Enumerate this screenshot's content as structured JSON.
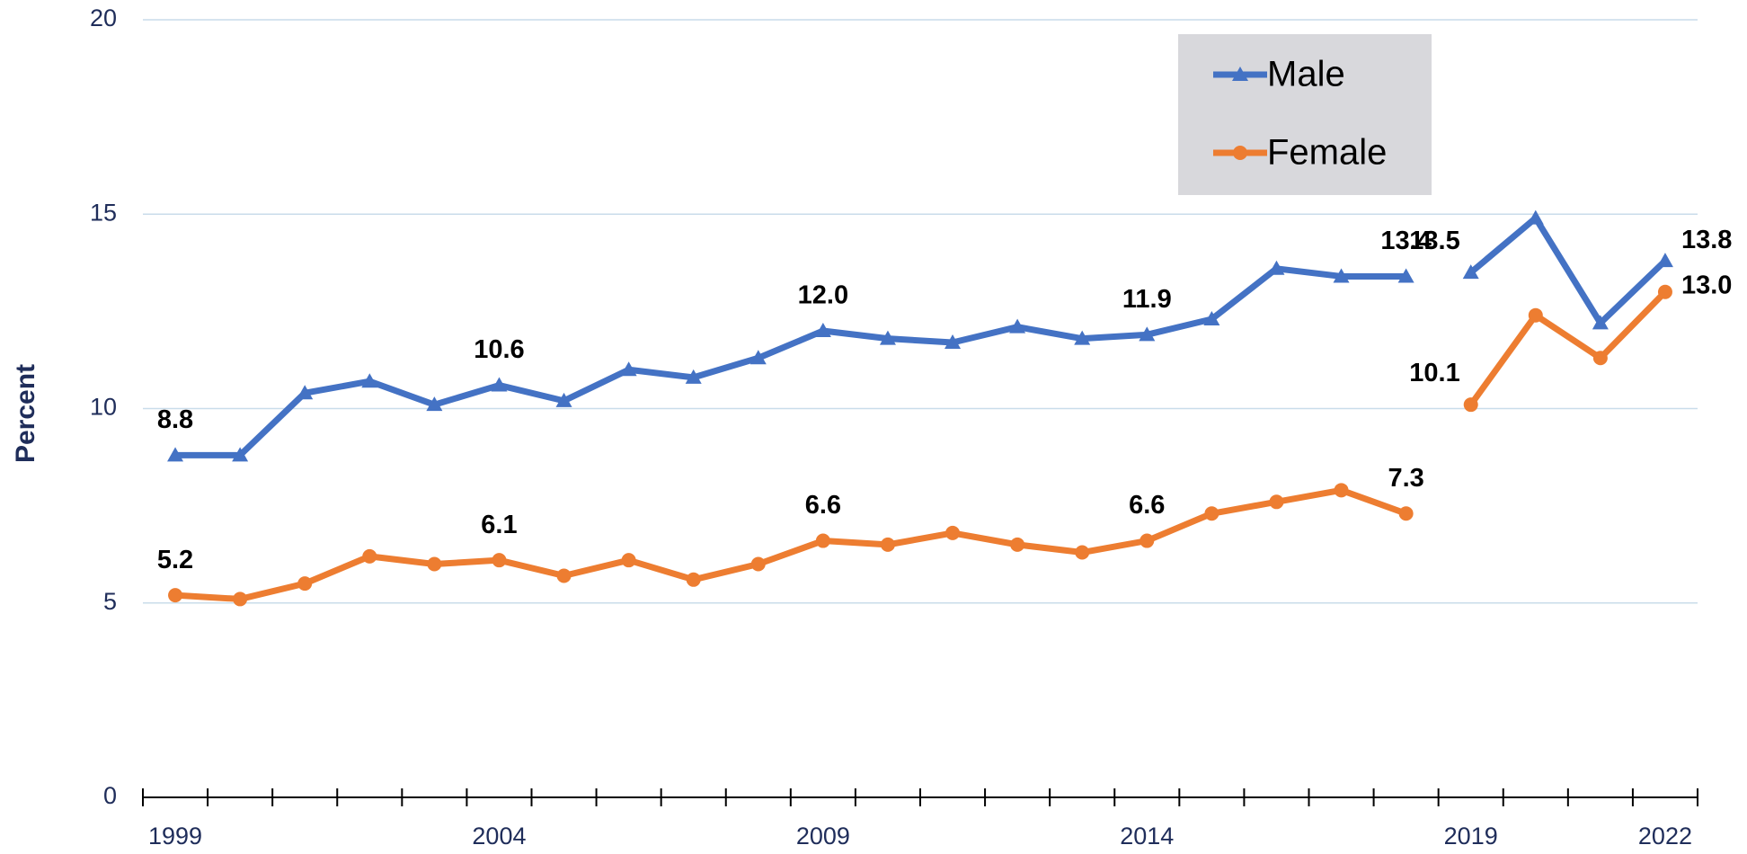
{
  "chart_data": {
    "type": "line",
    "y_label": "Percent",
    "x": [
      1999,
      2000,
      2001,
      2002,
      2003,
      2004,
      2005,
      2006,
      2007,
      2008,
      2009,
      2010,
      2011,
      2012,
      2013,
      2014,
      2015,
      2016,
      2017,
      2018,
      2019,
      2020,
      2021,
      2022
    ],
    "xlim": [
      1998.5,
      2022.5
    ],
    "xticks": [
      1999,
      2004,
      2009,
      2014,
      2019,
      2022
    ],
    "ylim": [
      0,
      20
    ],
    "yticks": [
      0,
      5,
      10,
      15,
      20
    ],
    "grid": true,
    "legend": "top-right",
    "break_before": "2019",
    "series": [
      {
        "name": "Male",
        "color": "#4472c4",
        "marker": "triangle",
        "values": [
          8.8,
          8.8,
          10.4,
          10.7,
          10.1,
          10.6,
          10.2,
          11.0,
          10.8,
          11.3,
          12.0,
          11.8,
          11.7,
          12.1,
          11.8,
          11.9,
          12.3,
          13.6,
          13.4,
          13.4,
          13.5,
          14.9,
          12.2,
          13.8
        ],
        "value_labels": [
          "8.8",
          null,
          null,
          null,
          null,
          "10.6",
          null,
          null,
          null,
          null,
          "12.0",
          null,
          null,
          null,
          null,
          "11.9",
          null,
          null,
          null,
          "13.4",
          "13.5",
          null,
          null,
          "13.8"
        ]
      },
      {
        "name": "Female",
        "color": "#ed7d31",
        "marker": "circle",
        "values": [
          5.2,
          5.1,
          5.5,
          6.2,
          6.0,
          6.1,
          5.7,
          6.1,
          5.6,
          6.0,
          6.6,
          6.5,
          6.8,
          6.5,
          6.3,
          6.6,
          7.3,
          7.6,
          7.9,
          7.3,
          10.1,
          12.4,
          11.3,
          13.0
        ],
        "value_labels": [
          "5.2",
          null,
          null,
          null,
          null,
          "6.1",
          null,
          null,
          null,
          null,
          "6.6",
          null,
          null,
          null,
          null,
          "6.6",
          null,
          null,
          null,
          "7.3",
          "10.1",
          null,
          null,
          "13.0"
        ]
      }
    ]
  }
}
